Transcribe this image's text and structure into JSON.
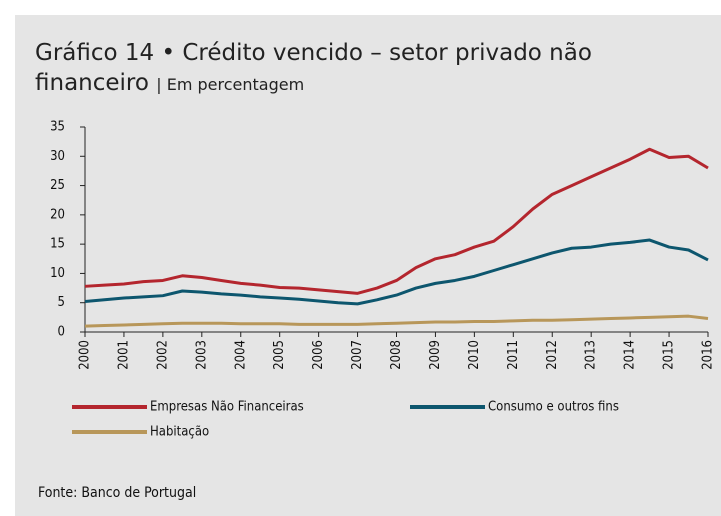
{
  "chart_data": {
    "type": "line",
    "title": "Gráfico 14 • Crédito vencido – setor privado não financeiro",
    "subtitle": "| Em percentagem",
    "source": "Fonte: Banco de Portugal",
    "x": [
      2000,
      2000.5,
      2001,
      2001.5,
      2002,
      2002.5,
      2003,
      2003.5,
      2004,
      2004.5,
      2005,
      2005.5,
      2006,
      2006.5,
      2007,
      2007.5,
      2008,
      2008.5,
      2009,
      2009.5,
      2010,
      2010.5,
      2011,
      2011.5,
      2012,
      2012.5,
      2013,
      2013.5,
      2014,
      2014.5,
      2015,
      2015.5,
      2016
    ],
    "series": [
      {
        "name": "Empresas Não Financeiras",
        "color": "#b4262e",
        "values": [
          7.8,
          8.0,
          8.2,
          8.6,
          8.8,
          9.6,
          9.3,
          8.8,
          8.3,
          8.0,
          7.6,
          7.5,
          7.2,
          6.9,
          6.6,
          7.5,
          8.8,
          11.0,
          12.5,
          13.2,
          14.5,
          15.5,
          18,
          21,
          23.5,
          25,
          26.5,
          28,
          29.5,
          31.2,
          29.8,
          30,
          28
        ]
      },
      {
        "name": "Consumo e outros fins",
        "color": "#0d566e",
        "values": [
          5.2,
          5.5,
          5.8,
          6.0,
          6.2,
          7.0,
          6.8,
          6.5,
          6.3,
          6.0,
          5.8,
          5.6,
          5.3,
          5.0,
          4.8,
          5.5,
          6.3,
          7.5,
          8.3,
          8.8,
          9.5,
          10.5,
          11.5,
          12.5,
          13.5,
          14.3,
          14.5,
          15.0,
          15.3,
          15.7,
          14.5,
          14.0,
          12.3
        ]
      },
      {
        "name": "Habitação",
        "color": "#b8975a",
        "values": [
          1.0,
          1.1,
          1.2,
          1.3,
          1.4,
          1.5,
          1.5,
          1.5,
          1.4,
          1.4,
          1.4,
          1.3,
          1.3,
          1.3,
          1.3,
          1.4,
          1.5,
          1.6,
          1.7,
          1.7,
          1.8,
          1.8,
          1.9,
          2.0,
          2.0,
          2.1,
          2.2,
          2.3,
          2.4,
          2.5,
          2.6,
          2.7,
          2.3
        ]
      }
    ],
    "xlim": [
      2000,
      2016
    ],
    "xticks": [
      2000,
      2001,
      2002,
      2003,
      2004,
      2005,
      2006,
      2007,
      2008,
      2009,
      2010,
      2011,
      2012,
      2013,
      2014,
      2015,
      2016
    ],
    "ylim": [
      0,
      35
    ],
    "yticks": [
      0,
      5,
      10,
      15,
      20,
      25,
      30,
      35
    ],
    "grid": false
  }
}
